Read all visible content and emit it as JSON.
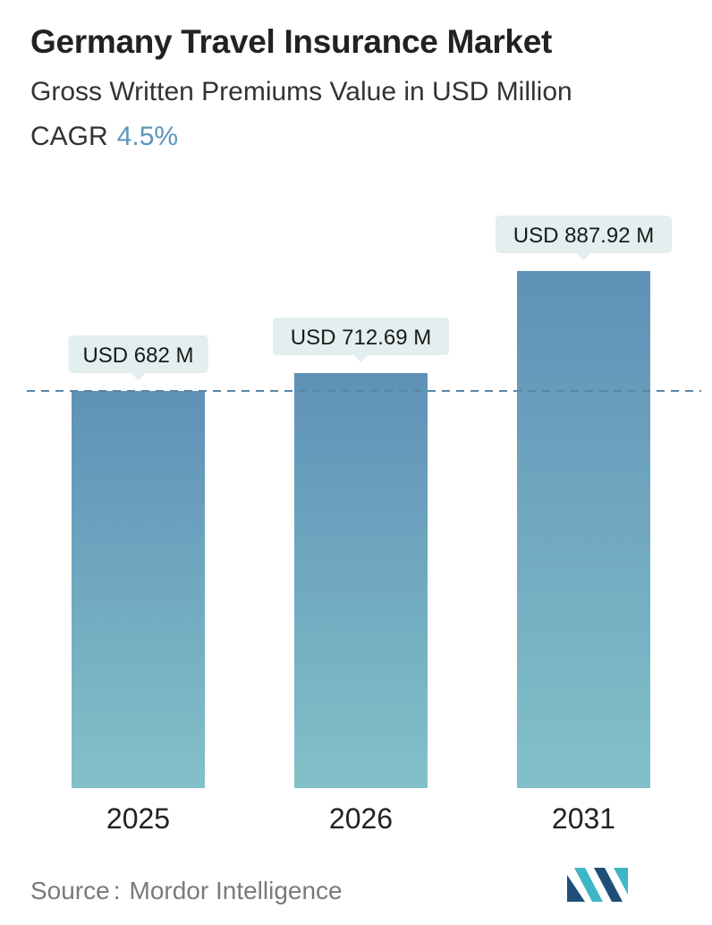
{
  "title": "Germany Travel Insurance Market",
  "subtitle": "Gross Written Premiums Value in USD Million",
  "cagr": {
    "label": "CAGR",
    "value": "4.5%"
  },
  "source": {
    "label": "Source",
    "separator": ":",
    "name": "Mordor Intelligence"
  },
  "colors": {
    "bar_top": "#5f91b7",
    "bar_bottom": "#82c1c9",
    "label_bg": "#e3eeee",
    "dash_line": "#5a86a6",
    "cagr_value": "#5b95bb",
    "logo_dark": "#1f4e79",
    "logo_light": "#3fb6c6"
  },
  "icons": {
    "brand_logo": "mordor-intelligence-logo"
  },
  "chart_data": {
    "type": "bar",
    "categories": [
      "2025",
      "2026",
      "2031"
    ],
    "values": [
      682,
      712.69,
      887.92
    ],
    "data_labels": [
      "USD 682 M",
      "USD 712.69 M",
      "USD 887.92 M"
    ],
    "title": "Germany Travel Insurance Market",
    "ylabel": "",
    "xlabel": "",
    "grid": false,
    "reference_line": 682
  }
}
